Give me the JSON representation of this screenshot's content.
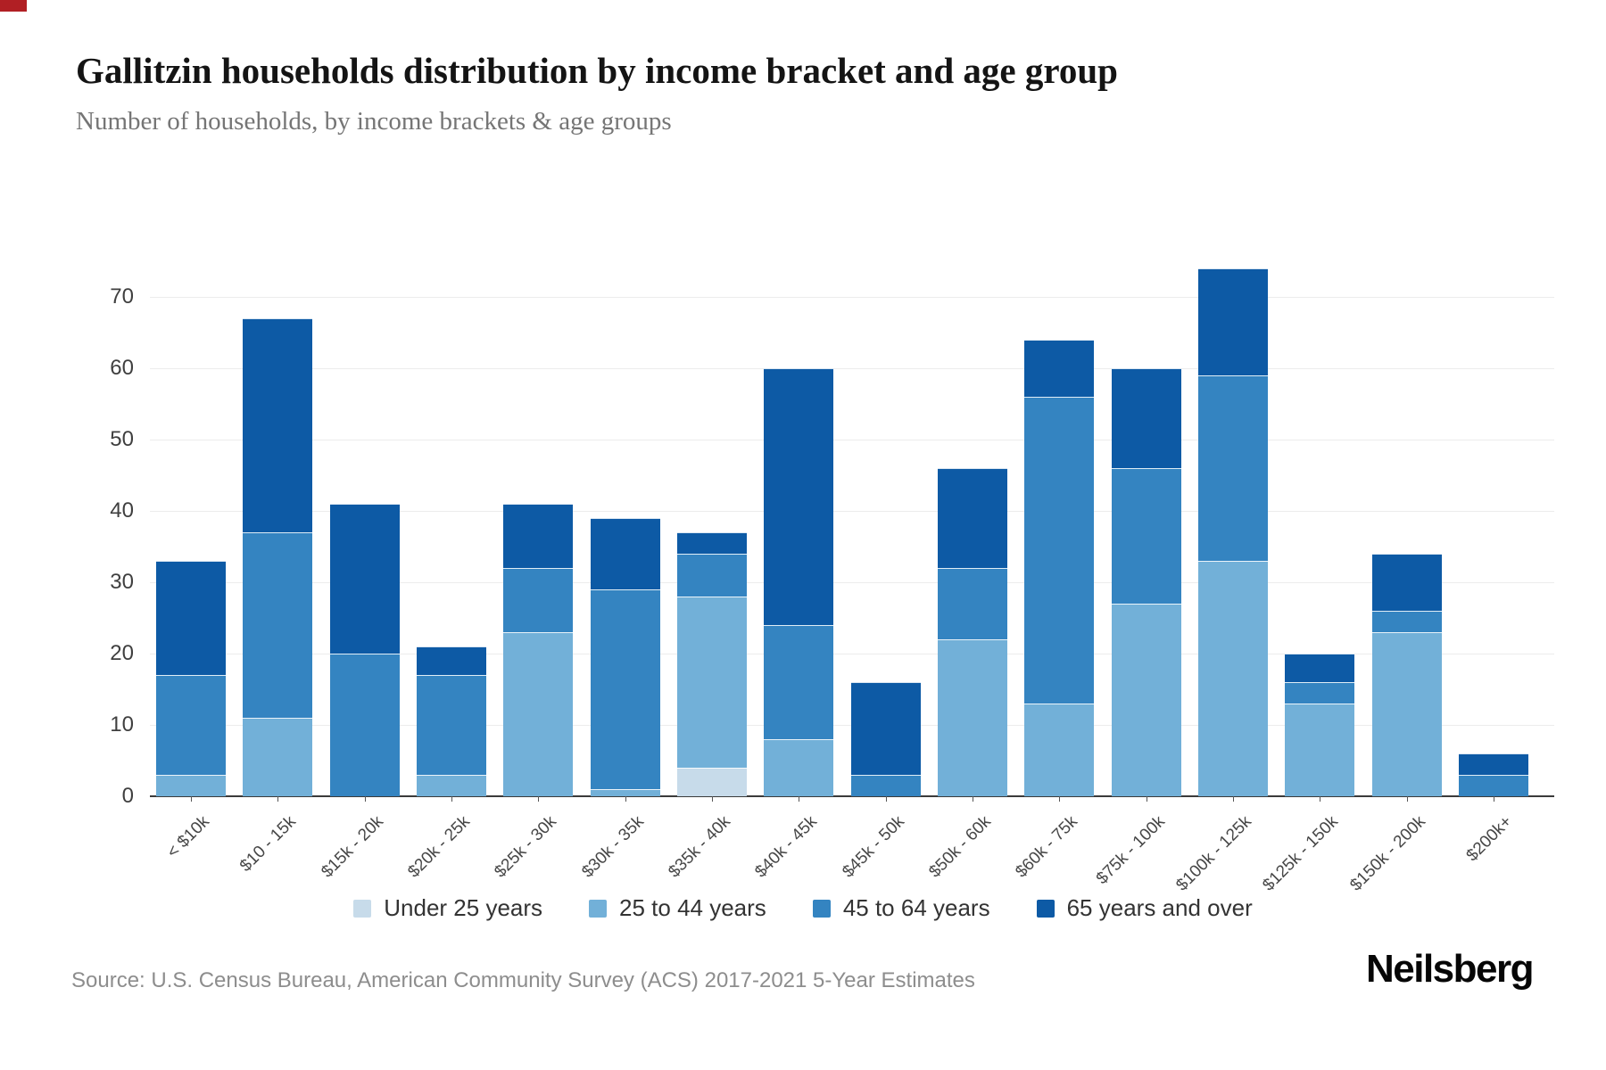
{
  "header": {
    "title": "Gallitzin households distribution by income bracket and age group",
    "subtitle": "Number of households, by income brackets & age groups"
  },
  "chart_data": {
    "type": "bar",
    "stacked": true,
    "title": "Gallitzin households distribution by income bracket and age group",
    "subtitle": "Number of households, by income brackets & age groups",
    "xlabel": "",
    "ylabel": "",
    "ylim": [
      0,
      75
    ],
    "yticks": [
      0,
      10,
      20,
      30,
      40,
      50,
      60,
      70
    ],
    "grid": true,
    "legend_position": "bottom",
    "categories": [
      "< $10k",
      "$10 - 15k",
      "$15k - 20k",
      "$20k - 25k",
      "$25k - 30k",
      "$30k - 35k",
      "$35k - 40k",
      "$40k - 45k",
      "$45k - 50k",
      "$50k - 60k",
      "$60k - 75k",
      "$75k - 100k",
      "$100k - 125k",
      "$125k - 150k",
      "$150k - 200k",
      "$200k+"
    ],
    "series": [
      {
        "name": "Under 25 years",
        "color": "#c7dbea",
        "values": [
          0,
          0,
          0,
          0,
          0,
          0,
          4,
          0,
          0,
          0,
          0,
          0,
          0,
          0,
          0,
          0
        ]
      },
      {
        "name": "25 to 44 years",
        "color": "#72b0d8",
        "values": [
          3,
          11,
          0,
          3,
          23,
          1,
          24,
          8,
          0,
          22,
          13,
          27,
          33,
          13,
          23,
          0
        ]
      },
      {
        "name": "45 to 64 years",
        "color": "#3484c1",
        "values": [
          14,
          26,
          20,
          14,
          9,
          28,
          6,
          16,
          3,
          10,
          43,
          19,
          26,
          3,
          3,
          3
        ]
      },
      {
        "name": "65 years and over",
        "color": "#0d5aa5",
        "values": [
          16,
          30,
          21,
          4,
          9,
          10,
          3,
          36,
          13,
          14,
          8,
          14,
          15,
          4,
          8,
          3
        ]
      }
    ],
    "totals": [
      33,
      67,
      41,
      21,
      41,
      39,
      37,
      60,
      16,
      46,
      64,
      60,
      74,
      20,
      34,
      6
    ]
  },
  "footer": {
    "source": "Source: U.S. Census Bureau, American Community Survey (ACS) 2017-2021 5-Year Estimates",
    "brand": "Neilsberg"
  }
}
